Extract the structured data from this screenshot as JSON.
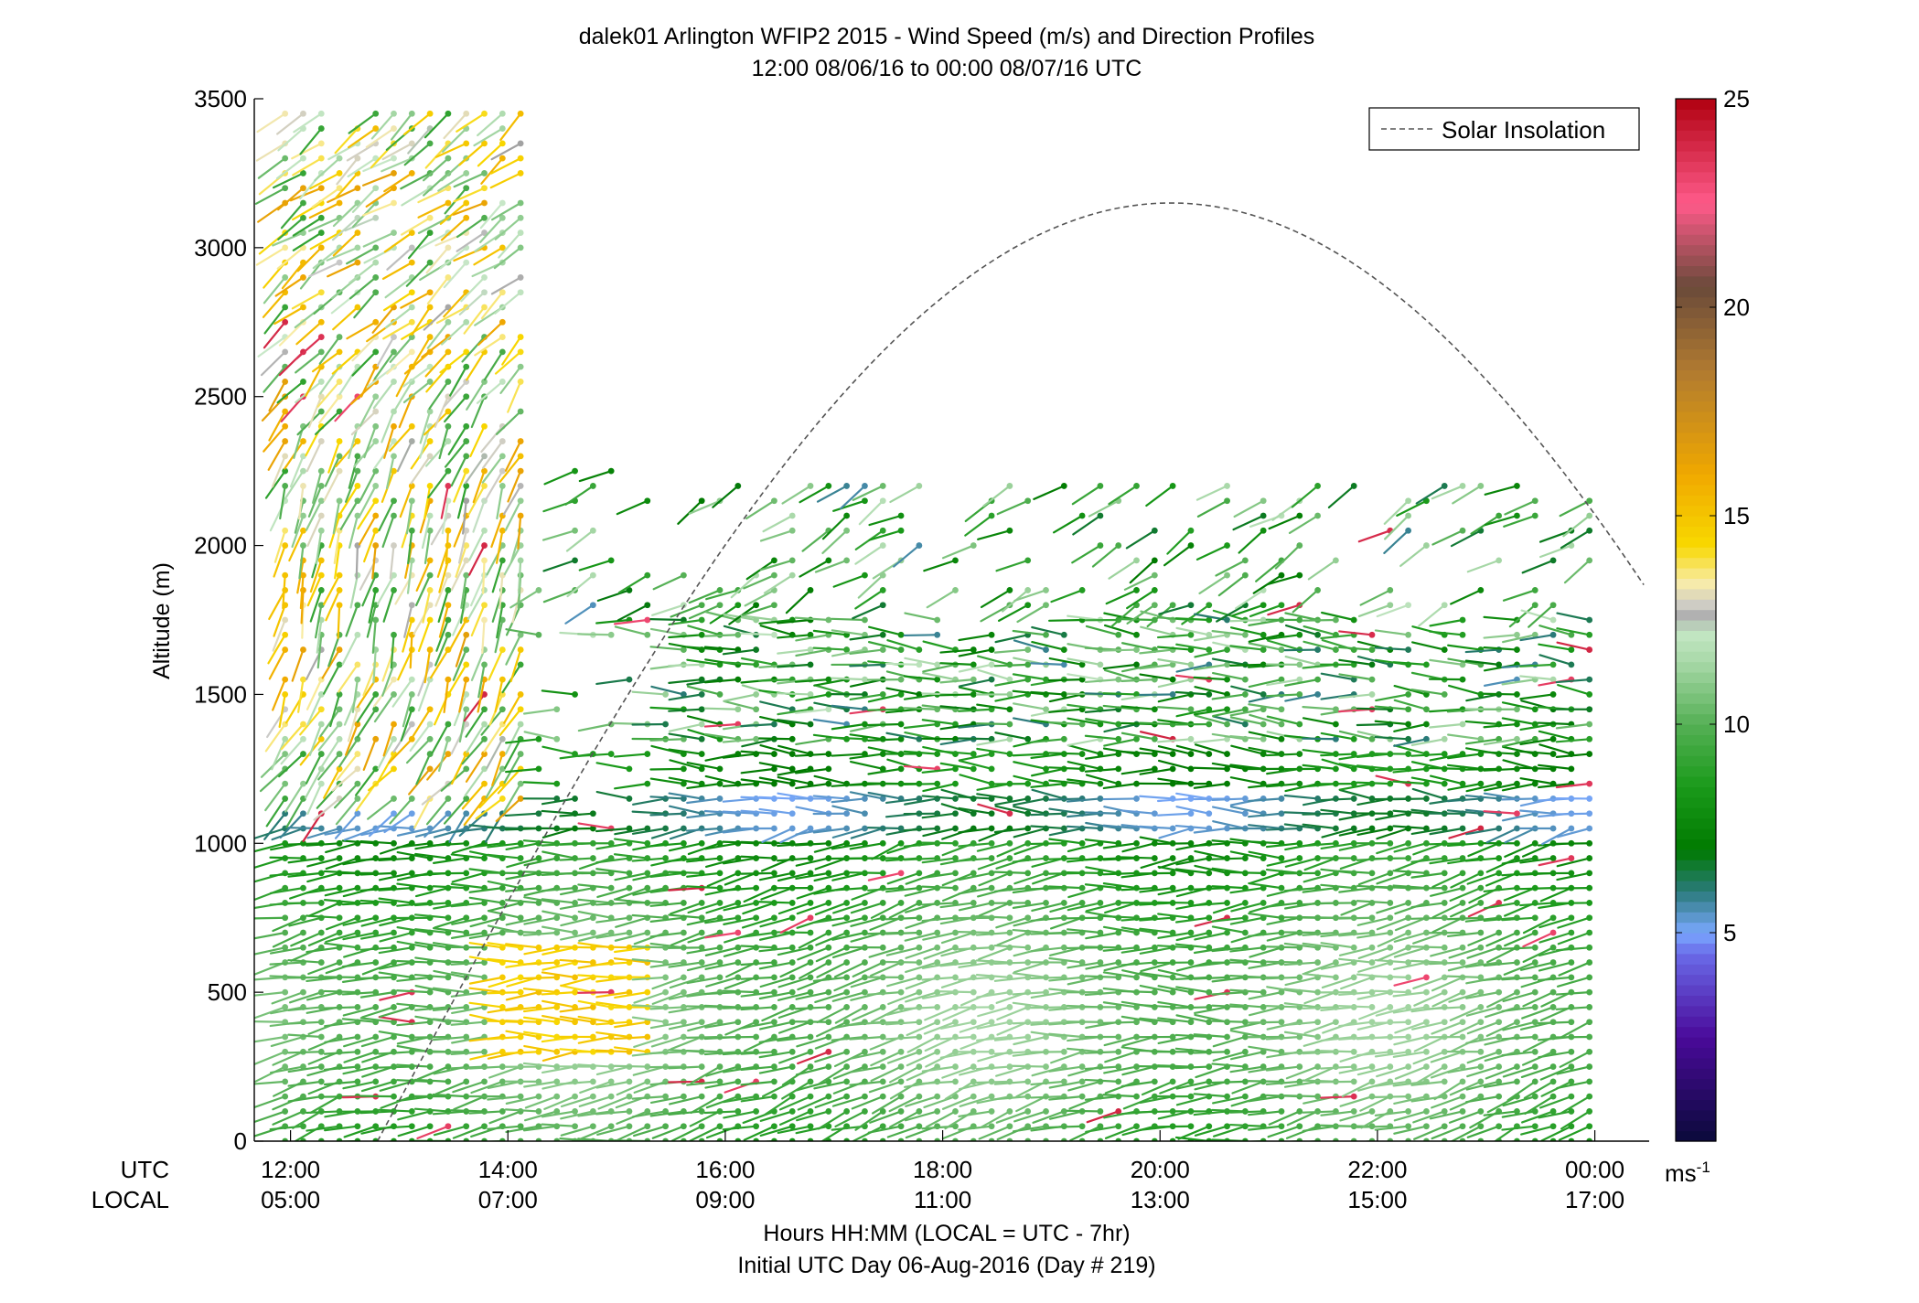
{
  "chart_data": {
    "type": "wind_barb_profile",
    "title": "dalek01 Arlington WFIP2 2015 - Wind Speed (m/s) and Direction Profiles",
    "subtitle": "12:00 08/06/16 to 00:00 08/07/16  UTC",
    "ylabel": "Altitude (m)",
    "xlabel": "Hours HH:MM  (LOCAL = UTC - 7hr)",
    "xlabel2": "Initial UTC Day 06-Aug-2016 (Day # 219)",
    "row_label_utc": "UTC",
    "row_label_local": "LOCAL",
    "xlim_hours_utc": [
      11.6667,
      24.5
    ],
    "ylim": [
      0,
      3500
    ],
    "y_ticks": [
      0,
      500,
      1000,
      1500,
      2000,
      2500,
      3000,
      3500
    ],
    "x_ticks": [
      {
        "hour": 12,
        "utc": "12:00",
        "local": "05:00"
      },
      {
        "hour": 14,
        "utc": "14:00",
        "local": "07:00"
      },
      {
        "hour": 16,
        "utc": "16:00",
        "local": "09:00"
      },
      {
        "hour": 18,
        "utc": "18:00",
        "local": "11:00"
      },
      {
        "hour": 20,
        "utc": "20:00",
        "local": "13:00"
      },
      {
        "hour": 22,
        "utc": "22:00",
        "local": "15:00"
      },
      {
        "hour": 24,
        "utc": "00:00",
        "local": "17:00"
      }
    ],
    "legend": {
      "label": "Solar Insolation",
      "position": "top-right",
      "style": "dashed"
    },
    "solar_insolation": {
      "shape": "sine",
      "sunrise_hour_utc": 12.8,
      "solar_noon_hour_utc": 20.1,
      "peak_altitude_equivalent": 3150
    },
    "colorbar": {
      "range": [
        0,
        25
      ],
      "ticks": [
        5,
        10,
        15,
        20,
        25
      ],
      "unit_label": "ms-1",
      "unit_base": "ms",
      "unit_exp": "-1",
      "stops": [
        {
          "v": 0,
          "c": "#0a0a3a"
        },
        {
          "v": 2.5,
          "c": "#4a0a9a"
        },
        {
          "v": 4.5,
          "c": "#6a6ae8"
        },
        {
          "v": 5,
          "c": "#7aa8ff"
        },
        {
          "v": 6,
          "c": "#2a7a7a"
        },
        {
          "v": 7,
          "c": "#007a00"
        },
        {
          "v": 8.5,
          "c": "#1a9a1a"
        },
        {
          "v": 10,
          "c": "#55b055"
        },
        {
          "v": 11.5,
          "c": "#a8d8a8"
        },
        {
          "v": 12.3,
          "c": "#c8e8c8"
        },
        {
          "v": 12.5,
          "c": "#a0a0a0"
        },
        {
          "v": 12.8,
          "c": "#c8c8c8"
        },
        {
          "v": 13.4,
          "c": "#f8ecaa"
        },
        {
          "v": 14.3,
          "c": "#f8d800"
        },
        {
          "v": 16,
          "c": "#f0a800"
        },
        {
          "v": 18.5,
          "c": "#b07a30"
        },
        {
          "v": 20.5,
          "c": "#6a4a3a"
        },
        {
          "v": 22.5,
          "c": "#ff5a8a"
        },
        {
          "v": 25,
          "c": "#b00010"
        }
      ]
    },
    "wind_profiles": {
      "time_step_hours": 0.16667,
      "altitude_step_m": 50,
      "barb_length": 1,
      "note_direction": "barb tail points toward the direction the wind comes from, degrees clockwise from north",
      "regimes": [
        {
          "name": "low-level flow",
          "alt_range": [
            0,
            1050
          ],
          "hours": [
            11.9,
            24.0
          ],
          "speed_mean": 9.5,
          "direction_mean": 262
        },
        {
          "name": "morning jet core",
          "alt_range": [
            250,
            700
          ],
          "hours": [
            13.9,
            15.3
          ],
          "speed_mean": 14.2,
          "direction_mean": 255
        },
        {
          "name": "mid-level flow",
          "alt_range": [
            1050,
            1800
          ],
          "hours": [
            15.7,
            24.0
          ],
          "speed_mean": 8.0,
          "direction_mean": 272
        },
        {
          "name": "early upper layer",
          "alt_range": [
            1000,
            3500
          ],
          "hours": [
            11.9,
            14.1
          ],
          "speed_mean": 11.5,
          "direction_mean": 215
        },
        {
          "name": "afternoon upper layer",
          "alt_range": [
            1800,
            2250
          ],
          "hours": [
            14.4,
            23.2
          ],
          "speed_mean": 9.0,
          "direction_mean": 240
        }
      ]
    }
  }
}
